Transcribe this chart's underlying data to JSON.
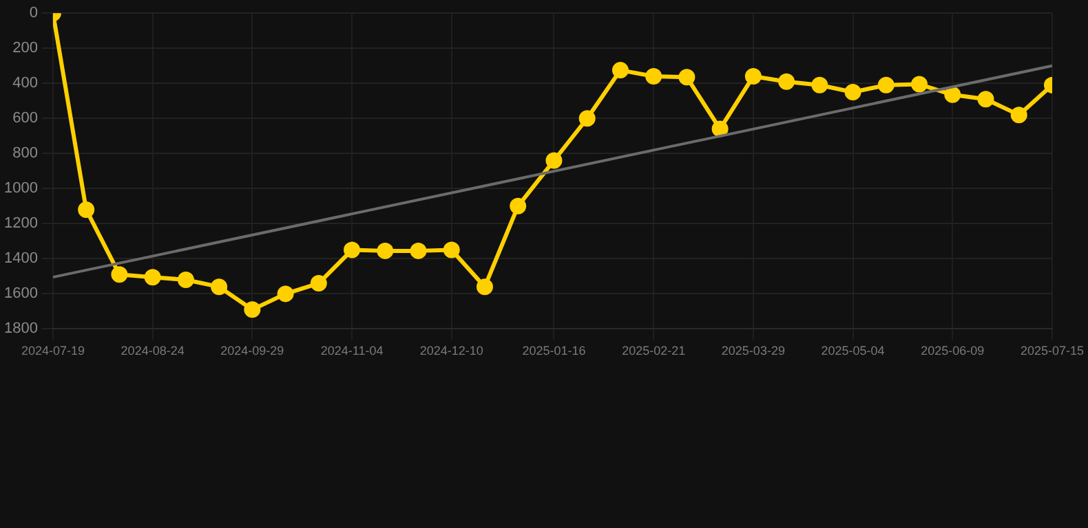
{
  "chart_data": {
    "type": "line",
    "x": [
      "2024-07-19",
      "2024-07-31",
      "2024-08-12",
      "2024-08-24",
      "2024-09-05",
      "2024-09-17",
      "2024-09-29",
      "2024-10-11",
      "2024-10-23",
      "2024-11-04",
      "2024-11-16",
      "2024-11-28",
      "2024-12-10",
      "2024-12-22",
      "2025-01-03",
      "2025-01-16",
      "2025-01-28",
      "2025-02-09",
      "2025-02-21",
      "2025-03-05",
      "2025-03-17",
      "2025-03-29",
      "2025-04-10",
      "2025-04-22",
      "2025-05-04",
      "2025-05-16",
      "2025-05-28",
      "2025-06-09",
      "2025-06-21",
      "2025-07-03",
      "2025-07-15"
    ],
    "series": [
      {
        "color": "#ffd000",
        "marker": "circle",
        "values": [
          0,
          1120,
          1490,
          1505,
          1520,
          1560,
          1690,
          1600,
          1540,
          1350,
          1355,
          1355,
          1350,
          1560,
          1100,
          840,
          600,
          325,
          360,
          365,
          660,
          360,
          390,
          410,
          450,
          410,
          405,
          465,
          490,
          580,
          410
        ]
      },
      {
        "type": "line",
        "color": "#6b6b6b",
        "marker": "none",
        "x": [
          "2024-07-19",
          "2025-07-15"
        ],
        "values": [
          1505,
          300
        ]
      }
    ],
    "xlim": [
      "2024-07-19",
      "2025-07-15"
    ],
    "xticks": [
      "2024-07-19",
      "2024-08-24",
      "2024-09-29",
      "2024-11-04",
      "2024-12-10",
      "2025-01-16",
      "2025-02-21",
      "2025-03-29",
      "2025-05-04",
      "2025-06-09",
      "2025-07-15"
    ],
    "ylim": [
      1800,
      0
    ],
    "yticks": [
      0,
      200,
      400,
      600,
      800,
      1000,
      1200,
      1400,
      1600,
      1800
    ],
    "grid": true,
    "legend": false
  }
}
